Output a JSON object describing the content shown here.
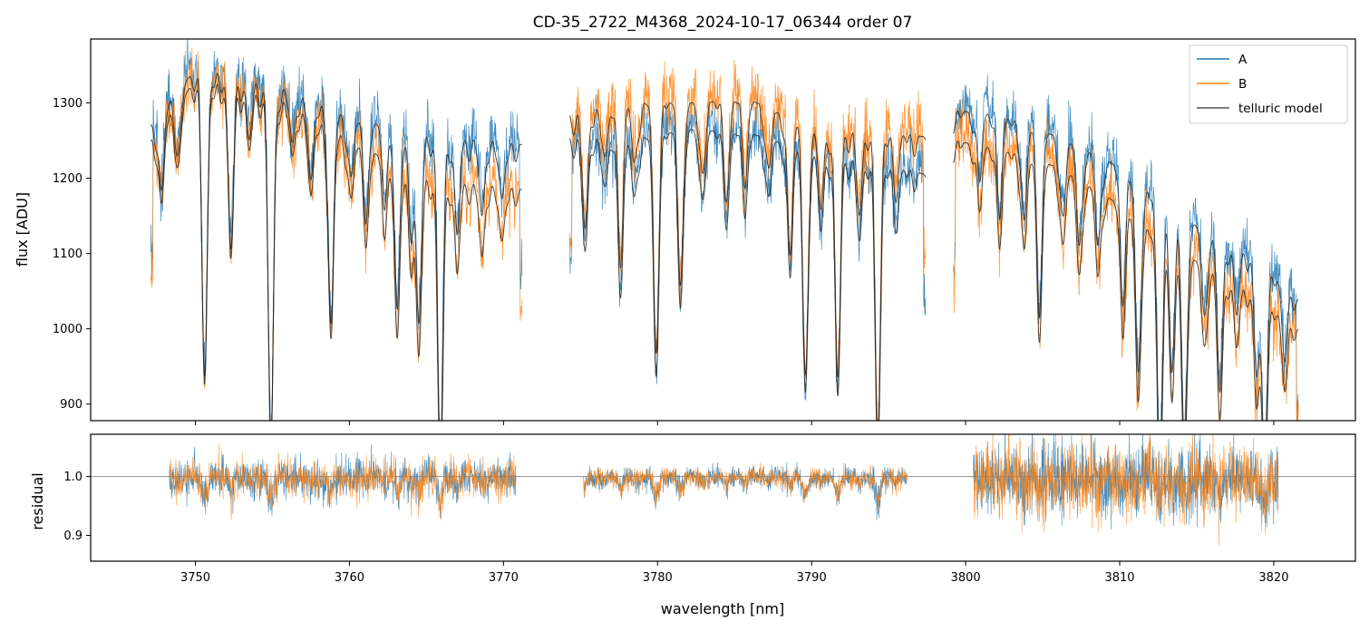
{
  "chart_data": {
    "title": "CD-35_2722_M4368_2024-10-17_06344  order 07",
    "colors": {
      "A": "#1f77b4",
      "B": "#ff7f0e",
      "model": "#222222",
      "refline": "#808080"
    },
    "legend": {
      "position": "top-right",
      "entries": [
        "A",
        "B",
        "telluric model"
      ]
    },
    "top_panel": {
      "type": "line",
      "ylabel": "flux [ADU]",
      "xlim": [
        3743.2,
        3825.3
      ],
      "ylim": [
        878,
        1385
      ],
      "yticks": [
        900,
        1000,
        1100,
        1200,
        1300
      ],
      "segments": [
        {
          "x_range": [
            3747.1,
            3771.2
          ],
          "continuum_A": [
            [
              3747.1,
              1270
            ],
            [
              3750,
              1345
            ],
            [
              3755,
              1325
            ],
            [
              3760,
              1280
            ],
            [
              3765,
              1258
            ],
            [
              3771.2,
              1245
            ]
          ],
          "continuum_B": [
            [
              3747.1,
              1250
            ],
            [
              3750,
              1330
            ],
            [
              3755,
              1310
            ],
            [
              3760,
              1250
            ],
            [
              3765,
              1200
            ],
            [
              3771.2,
              1185
            ]
          ]
        },
        {
          "x_range": [
            3774.3,
            3797.4
          ],
          "continuum_A": [
            [
              3774.3,
              1255
            ],
            [
              3778,
              1250
            ],
            [
              3782,
              1265
            ],
            [
              3786,
              1260
            ],
            [
              3790,
              1235
            ],
            [
              3794,
              1225
            ],
            [
              3797.4,
              1205
            ]
          ],
          "continuum_B": [
            [
              3774.3,
              1285
            ],
            [
              3778,
              1300
            ],
            [
              3782,
              1300
            ],
            [
              3786,
              1305
            ],
            [
              3790,
              1265
            ],
            [
              3794,
              1265
            ],
            [
              3797.4,
              1255
            ]
          ]
        },
        {
          "x_range": [
            3799.2,
            3821.6
          ],
          "continuum_A": [
            [
              3799.2,
              1290
            ],
            [
              3802,
              1285
            ],
            [
              3806,
              1255
            ],
            [
              3810,
              1215
            ],
            [
              3813,
              1160
            ],
            [
              3816,
              1125
            ],
            [
              3819,
              1095
            ],
            [
              3821.6,
              1040
            ]
          ],
          "continuum_B": [
            [
              3799.2,
              1250
            ],
            [
              3802,
              1240
            ],
            [
              3806,
              1215
            ],
            [
              3810,
              1165
            ],
            [
              3813,
              1110
            ],
            [
              3816,
              1080
            ],
            [
              3819,
              1045
            ],
            [
              3821.6,
              1000
            ]
          ]
        }
      ],
      "telluric_lines": [
        {
          "center": 3747.8,
          "depth": 0.08
        },
        {
          "center": 3748.9,
          "depth": 0.06
        },
        {
          "center": 3750.6,
          "depth": 0.3
        },
        {
          "center": 3752.3,
          "depth": 0.17
        },
        {
          "center": 3753.5,
          "depth": 0.06
        },
        {
          "center": 3754.9,
          "depth": 0.36
        },
        {
          "center": 3756.3,
          "depth": 0.05
        },
        {
          "center": 3757.5,
          "depth": 0.08
        },
        {
          "center": 3758.8,
          "depth": 0.22
        },
        {
          "center": 3760.1,
          "depth": 0.06
        },
        {
          "center": 3761.1,
          "depth": 0.09
        },
        {
          "center": 3762.3,
          "depth": 0.07
        },
        {
          "center": 3763.1,
          "depth": 0.19
        },
        {
          "center": 3764.0,
          "depth": 0.1
        },
        {
          "center": 3764.5,
          "depth": 0.2
        },
        {
          "center": 3765.9,
          "depth": 0.34
        },
        {
          "center": 3767.0,
          "depth": 0.1
        },
        {
          "center": 3768.6,
          "depth": 0.08
        },
        {
          "center": 3769.9,
          "depth": 0.06
        },
        {
          "center": 3775.3,
          "depth": 0.12
        },
        {
          "center": 3776.6,
          "depth": 0.05
        },
        {
          "center": 3777.6,
          "depth": 0.15
        },
        {
          "center": 3778.5,
          "depth": 0.06
        },
        {
          "center": 3779.9,
          "depth": 0.25
        },
        {
          "center": 3781.5,
          "depth": 0.18
        },
        {
          "center": 3782.9,
          "depth": 0.07
        },
        {
          "center": 3784.5,
          "depth": 0.09
        },
        {
          "center": 3785.7,
          "depth": 0.07
        },
        {
          "center": 3787.2,
          "depth": 0.06
        },
        {
          "center": 3788.6,
          "depth": 0.13
        },
        {
          "center": 3789.6,
          "depth": 0.26
        },
        {
          "center": 3790.6,
          "depth": 0.08
        },
        {
          "center": 3791.7,
          "depth": 0.26
        },
        {
          "center": 3793.1,
          "depth": 0.09
        },
        {
          "center": 3794.3,
          "depth": 0.32
        },
        {
          "center": 3795.5,
          "depth": 0.06
        },
        {
          "center": 3800.9,
          "depth": 0.06
        },
        {
          "center": 3802.2,
          "depth": 0.09
        },
        {
          "center": 3803.8,
          "depth": 0.1
        },
        {
          "center": 3804.8,
          "depth": 0.18
        },
        {
          "center": 3806.3,
          "depth": 0.08
        },
        {
          "center": 3807.4,
          "depth": 0.1
        },
        {
          "center": 3808.6,
          "depth": 0.09
        },
        {
          "center": 3810.2,
          "depth": 0.13
        },
        {
          "center": 3811.2,
          "depth": 0.21
        },
        {
          "center": 3812.6,
          "depth": 0.3
        },
        {
          "center": 3813.4,
          "depth": 0.18
        },
        {
          "center": 3814.2,
          "depth": 0.26
        },
        {
          "center": 3815.5,
          "depth": 0.1
        },
        {
          "center": 3816.5,
          "depth": 0.18
        },
        {
          "center": 3817.6,
          "depth": 0.08
        },
        {
          "center": 3818.9,
          "depth": 0.14
        },
        {
          "center": 3819.4,
          "depth": 0.23
        },
        {
          "center": 3820.7,
          "depth": 0.09
        }
      ]
    },
    "bottom_panel": {
      "type": "line",
      "xlabel": "wavelength [nm]",
      "ylabel": "residual",
      "xlim": [
        3743.2,
        3825.3
      ],
      "ylim": [
        0.856,
        1.072
      ],
      "xticks": [
        3750,
        3760,
        3770,
        3780,
        3790,
        3800,
        3810,
        3820
      ],
      "yticks": [
        0.9,
        1.0
      ],
      "reference_line": 1.0,
      "segments": [
        {
          "x_range": [
            3748.3,
            3770.8
          ],
          "noise": 0.017
        },
        {
          "x_range": [
            3775.2,
            3796.2
          ],
          "noise": 0.009
        },
        {
          "x_range": [
            3800.5,
            3820.3
          ],
          "noise": 0.03
        }
      ]
    }
  }
}
